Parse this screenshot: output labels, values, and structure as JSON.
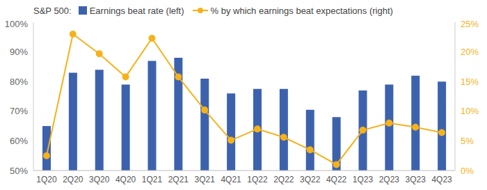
{
  "chart_data": {
    "type": "bar",
    "title": "S&P 500:",
    "legend": "top",
    "grid": false,
    "categories": [
      "1Q20",
      "2Q20",
      "3Q20",
      "4Q20",
      "1Q21",
      "2Q21",
      "3Q21",
      "4Q21",
      "1Q22",
      "2Q22",
      "3Q22",
      "4Q22",
      "1Q23",
      "2Q23",
      "3Q23",
      "4Q23"
    ],
    "series": [
      {
        "name": "Earnings beat rate (left)",
        "type": "bar",
        "color": "#3d62ad",
        "values": [
          65,
          83,
          84,
          79,
          87,
          88,
          81,
          76,
          77.5,
          77.5,
          70.5,
          68,
          77,
          79,
          82,
          80
        ]
      },
      {
        "name": "% by which earnings beat expectations (right)",
        "type": "line",
        "color": "#f5b21b",
        "marker": "circle",
        "axis": "y2",
        "values": [
          2.5,
          23,
          19.7,
          15.8,
          22.3,
          15.8,
          10.2,
          5.1,
          7,
          5.6,
          3.5,
          1,
          6.8,
          8,
          7.3,
          6.4
        ]
      }
    ],
    "ylim": [
      50,
      100
    ],
    "yticks": [
      {
        "value": 50,
        "label": "50%"
      },
      {
        "value": 60,
        "label": "60%"
      },
      {
        "value": 70,
        "label": "70%"
      },
      {
        "value": 80,
        "label": "80%"
      },
      {
        "value": 90,
        "label": "90%"
      },
      {
        "value": 100,
        "label": "100%"
      }
    ],
    "y2lim": [
      0,
      25
    ],
    "y2ticks": [
      {
        "value": 0,
        "label": "0%"
      },
      {
        "value": 5,
        "label": "5%"
      },
      {
        "value": 10,
        "label": "10%"
      },
      {
        "value": 15,
        "label": "15%"
      },
      {
        "value": 20,
        "label": "20%"
      },
      {
        "value": 25,
        "label": "25%"
      }
    ]
  }
}
